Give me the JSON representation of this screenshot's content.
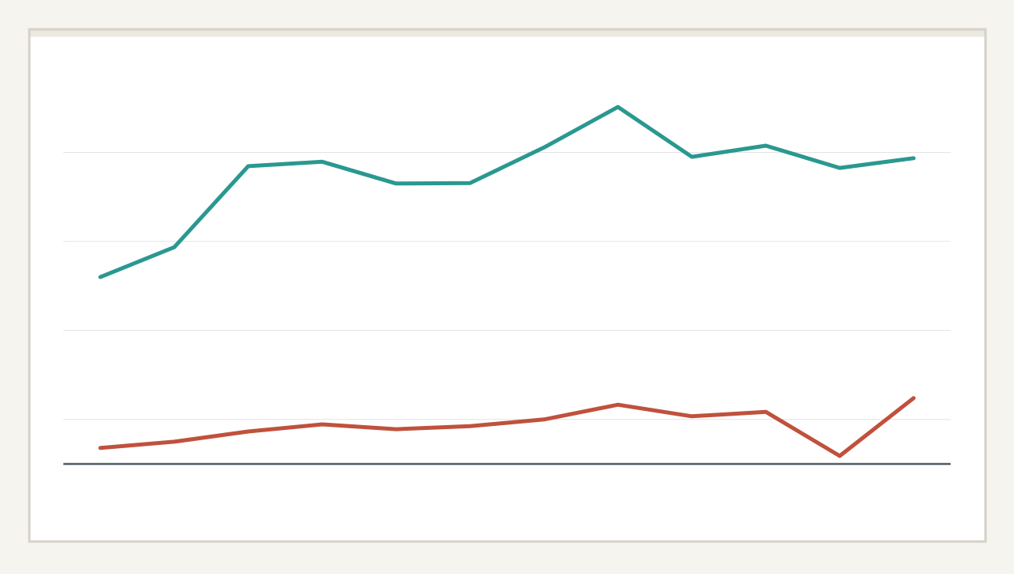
{
  "chart_data": {
    "type": "line",
    "categories": [
      null,
      null,
      null,
      null,
      null,
      null,
      null,
      null,
      null,
      null,
      null,
      null
    ],
    "series": [
      {
        "color": "#2a9890",
        "values": [
          42.0,
          48.7,
          66.9,
          67.9,
          63.0,
          63.1,
          71.1,
          80.2,
          69.0,
          71.5,
          66.5,
          68.7
        ]
      },
      {
        "color": "#c0513c",
        "values": [
          3.6,
          5.0,
          7.3,
          8.9,
          7.8,
          8.5,
          10.0,
          13.3,
          10.7,
          11.7,
          1.8,
          14.8
        ]
      }
    ],
    "ylim": [
      0,
      90
    ],
    "yticks": [
      10,
      30,
      50,
      70
    ],
    "grid": true
  }
}
